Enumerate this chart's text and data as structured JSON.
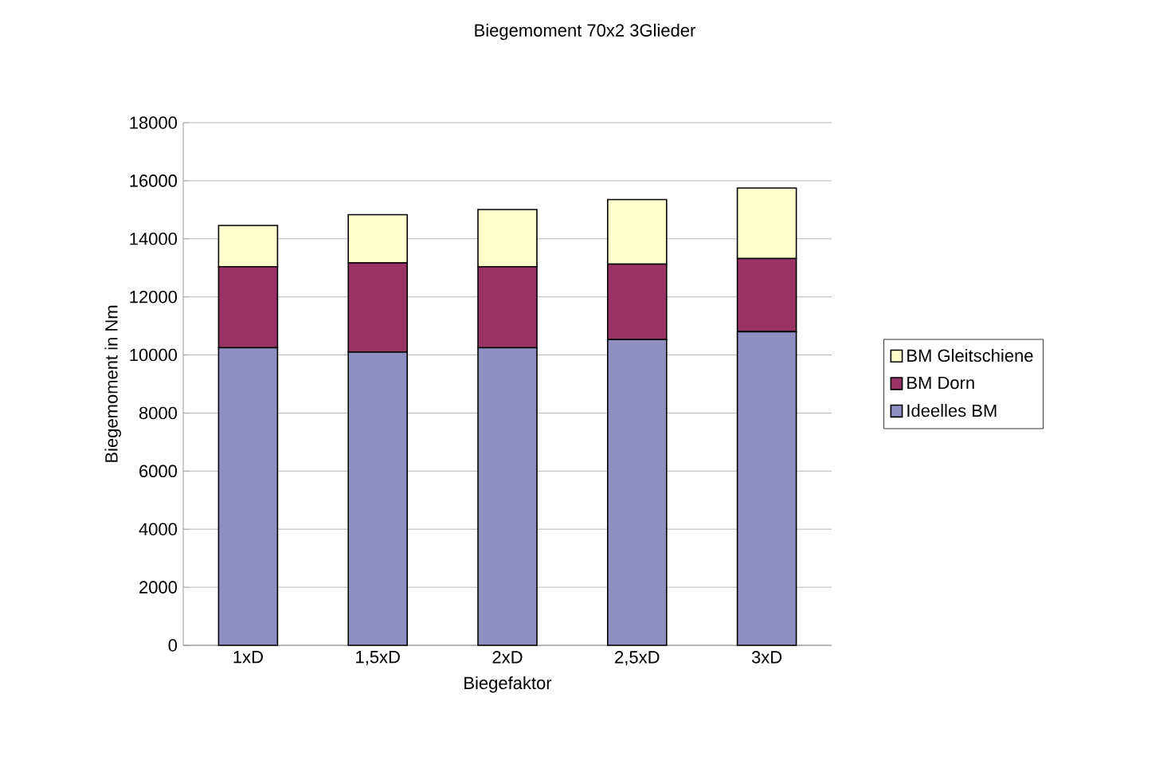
{
  "chart_data": {
    "type": "bar",
    "stacked": true,
    "title": "Biegemoment 70x2 3Glieder",
    "xlabel": "Biegefaktor",
    "ylabel": "Biegemoment in Nm",
    "categories": [
      "1xD",
      "1,5xD",
      "2xD",
      "2,5xD",
      "3xD"
    ],
    "series": [
      {
        "name": "Ideelles BM",
        "color": "#8f8fc2",
        "values": [
          10250,
          10100,
          10250,
          10530,
          10800
        ]
      },
      {
        "name": "BM Dorn",
        "color": "#993366",
        "values": [
          2790,
          3070,
          2790,
          2600,
          2520
        ]
      },
      {
        "name": "BM Gleitschiene",
        "color": "#ffffcc",
        "values": [
          1420,
          1660,
          1970,
          2220,
          2430
        ]
      }
    ],
    "ylim": [
      0,
      18000
    ],
    "yticks": [
      0,
      2000,
      4000,
      6000,
      8000,
      10000,
      12000,
      14000,
      16000,
      18000
    ],
    "grid": "y",
    "legend": "right"
  }
}
